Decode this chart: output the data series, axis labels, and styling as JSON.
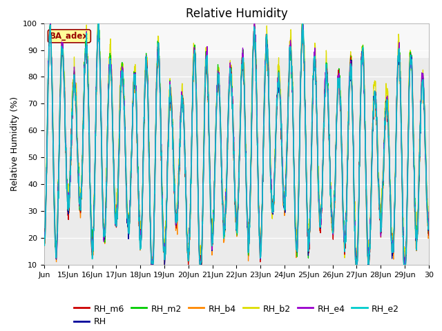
{
  "title": "Relative Humidity",
  "ylabel": "Relative Humidity (%)",
  "ylim": [
    10,
    100
  ],
  "xlim": [
    0,
    16
  ],
  "x_tick_labels": [
    "Jun",
    "15Jun",
    "16Jun",
    "17Jun",
    "18Jun",
    "19Jun",
    "20Jun",
    "21Jun",
    "22Jun",
    "23Jun",
    "24Jun",
    "25Jun",
    "26Jun",
    "27Jun",
    "28Jun",
    "29Jun",
    "30"
  ],
  "colors": {
    "RH_m6": "#cc0000",
    "RH": "#000099",
    "RH_m2": "#00cc00",
    "RH_b4": "#ff8800",
    "RH_b2": "#dddd00",
    "RH_e4": "#9900cc",
    "RH_e2": "#00cccc"
  },
  "annotation_text": "BA_adex",
  "annotation_fg": "#990000",
  "annotation_bg": "#ffff99",
  "plot_bg": "#ebebeb",
  "title_fontsize": 12,
  "legend_fontsize": 9,
  "axis_labelsize": 9
}
